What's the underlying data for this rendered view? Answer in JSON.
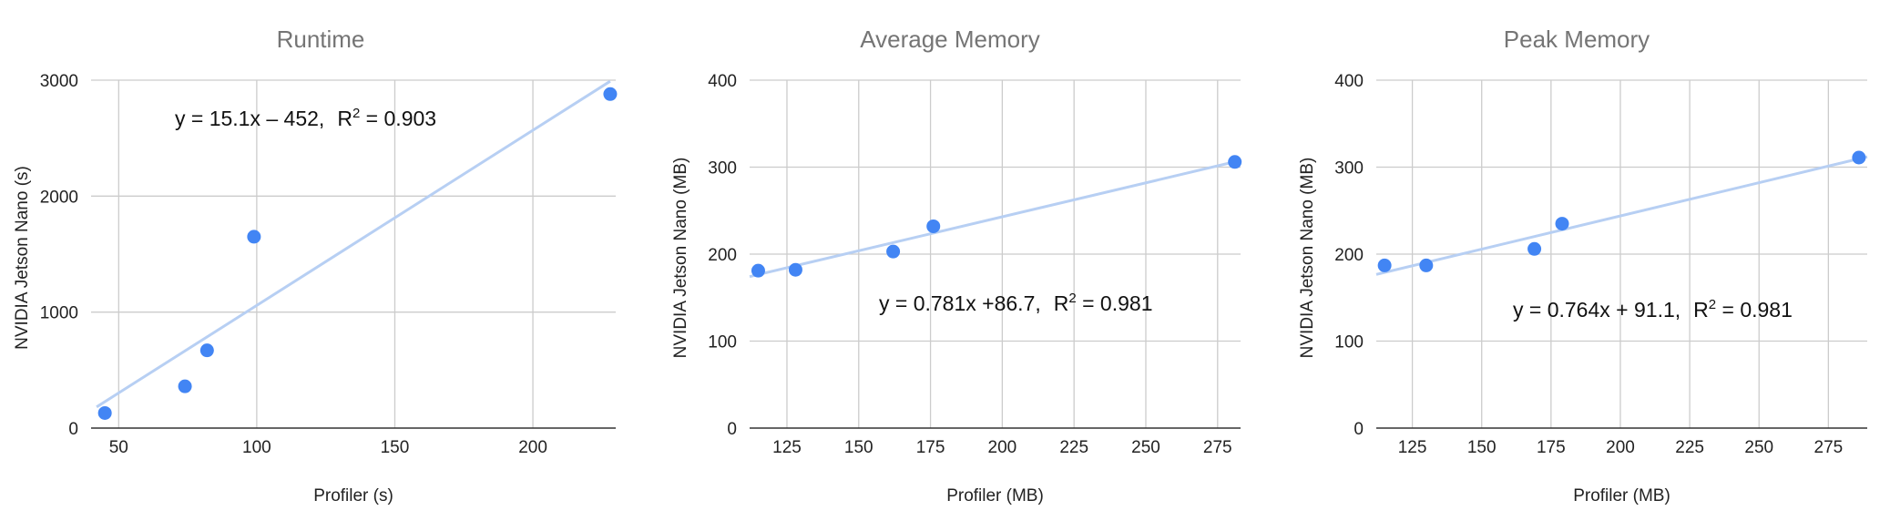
{
  "chart_data": [
    {
      "type": "scatter",
      "title": "Runtime",
      "xlabel": "Profiler (s)",
      "ylabel": "NVIDIA Jetson Nano (s)",
      "xlim": [
        40,
        230
      ],
      "ylim": [
        0,
        3000
      ],
      "xticks": [
        50,
        100,
        150,
        200
      ],
      "yticks": [
        0,
        1000,
        2000,
        3000
      ],
      "grid": true,
      "colors": {
        "points": "#4285f4",
        "trendline": "#b7cff3"
      },
      "series": [
        {
          "points": [
            {
              "x": 45,
              "y": 130
            },
            {
              "x": 74,
              "y": 360
            },
            {
              "x": 82,
              "y": 670
            },
            {
              "x": 99,
              "y": 1650
            },
            {
              "x": 228,
              "y": 2880
            }
          ]
        }
      ],
      "trendline": {
        "slope": 15.1,
        "intercept": -452,
        "x_range": [
          42,
          228
        ]
      },
      "annotation": {
        "equation": "y = 15.1x – 452,",
        "r_label": "R",
        "r_power": "2",
        "r_value": " = 0.903"
      }
    },
    {
      "type": "scatter",
      "title": "Average Memory",
      "xlabel": "Profiler (MB)",
      "ylabel": "NVIDIA Jetson Nano (MB)",
      "xlim": [
        112,
        283
      ],
      "ylim": [
        0,
        400
      ],
      "xticks": [
        125,
        150,
        175,
        200,
        225,
        250,
        275
      ],
      "yticks": [
        0,
        100,
        200,
        300,
        400
      ],
      "grid": true,
      "colors": {
        "points": "#4285f4",
        "trendline": "#b7cff3"
      },
      "series": [
        {
          "points": [
            {
              "x": 115,
              "y": 181
            },
            {
              "x": 128,
              "y": 182
            },
            {
              "x": 162,
              "y": 203
            },
            {
              "x": 176,
              "y": 232
            },
            {
              "x": 281,
              "y": 306
            }
          ]
        }
      ],
      "trendline": {
        "slope": 0.781,
        "intercept": 86.7,
        "x_range": [
          112,
          283
        ]
      },
      "annotation": {
        "equation": "y = 0.781x +86.7,",
        "r_label": "R",
        "r_power": "2",
        "r_value": " = 0.981"
      }
    },
    {
      "type": "scatter",
      "title": "Peak Memory",
      "xlabel": "Profiler (MB)",
      "ylabel": "NVIDIA Jetson Nano (MB)",
      "xlim": [
        112,
        289
      ],
      "ylim": [
        0,
        400
      ],
      "xticks": [
        125,
        150,
        175,
        200,
        225,
        250,
        275
      ],
      "yticks": [
        0,
        100,
        200,
        300,
        400
      ],
      "grid": true,
      "colors": {
        "points": "#4285f4",
        "trendline": "#b7cff3"
      },
      "series": [
        {
          "points": [
            {
              "x": 115,
              "y": 187
            },
            {
              "x": 130,
              "y": 187
            },
            {
              "x": 169,
              "y": 206
            },
            {
              "x": 179,
              "y": 235
            },
            {
              "x": 286,
              "y": 311
            }
          ]
        }
      ],
      "trendline": {
        "slope": 0.764,
        "intercept": 91.1,
        "x_range": [
          112,
          289
        ]
      },
      "annotation": {
        "equation": "y = 0.764x + 91.1,",
        "r_label": "R",
        "r_power": "2",
        "r_value": " = 0.981"
      }
    }
  ]
}
